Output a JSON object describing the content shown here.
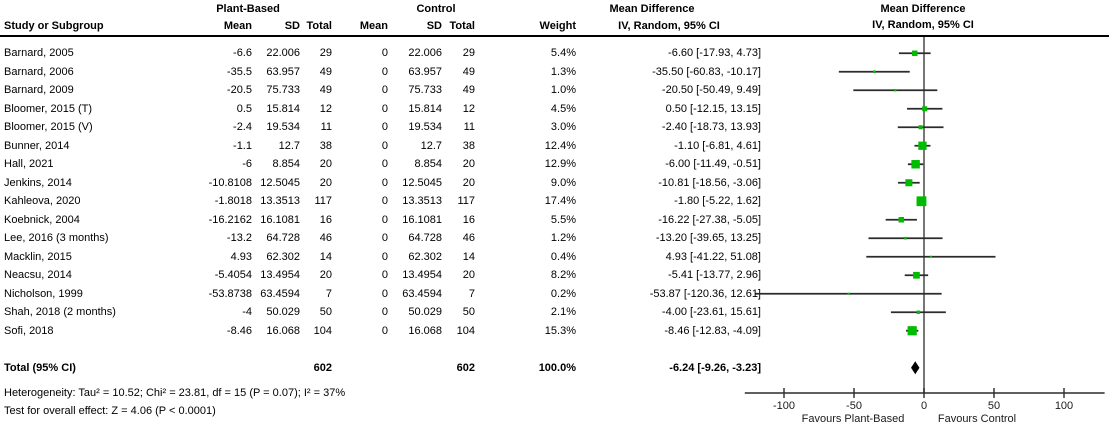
{
  "header": {
    "group_plant": "Plant-Based",
    "group_control": "Control",
    "md_title_left": "Mean Difference",
    "md_sub_left": "IV, Random, 95% CI",
    "md_title_right": "Mean Difference",
    "md_sub_right": "IV, Random, 95% CI",
    "col_study": "Study or Subgroup",
    "col_mean": "Mean",
    "col_sd": "SD",
    "col_total": "Total",
    "col_weight": "Weight"
  },
  "studies": [
    {
      "name": "Barnard, 2005",
      "p_mean": "-6.6",
      "p_sd": "22.006",
      "p_total": "29",
      "c_mean": "0",
      "c_sd": "22.006",
      "c_total": "29",
      "weight": "5.4%",
      "md_text": "-6.60 [-17.93, 4.73]",
      "md": -6.6,
      "lo": -17.93,
      "hi": 4.73,
      "w": 5.4
    },
    {
      "name": "Barnard, 2006",
      "p_mean": "-35.5",
      "p_sd": "63.957",
      "p_total": "49",
      "c_mean": "0",
      "c_sd": "63.957",
      "c_total": "49",
      "weight": "1.3%",
      "md_text": "-35.50 [-60.83, -10.17]",
      "md": -35.5,
      "lo": -60.83,
      "hi": -10.17,
      "w": 1.3
    },
    {
      "name": "Barnard, 2009",
      "p_mean": "-20.5",
      "p_sd": "75.733",
      "p_total": "49",
      "c_mean": "0",
      "c_sd": "75.733",
      "c_total": "49",
      "weight": "1.0%",
      "md_text": "-20.50 [-50.49, 9.49]",
      "md": -20.5,
      "lo": -50.49,
      "hi": 9.49,
      "w": 1.0
    },
    {
      "name": "Bloomer, 2015 (T)",
      "p_mean": "0.5",
      "p_sd": "15.814",
      "p_total": "12",
      "c_mean": "0",
      "c_sd": "15.814",
      "c_total": "12",
      "weight": "4.5%",
      "md_text": "0.50 [-12.15, 13.15]",
      "md": 0.5,
      "lo": -12.15,
      "hi": 13.15,
      "w": 4.5
    },
    {
      "name": "Bloomer, 2015 (V)",
      "p_mean": "-2.4",
      "p_sd": "19.534",
      "p_total": "11",
      "c_mean": "0",
      "c_sd": "19.534",
      "c_total": "11",
      "weight": "3.0%",
      "md_text": "-2.40 [-18.73, 13.93]",
      "md": -2.4,
      "lo": -18.73,
      "hi": 13.93,
      "w": 3.0
    },
    {
      "name": "Bunner, 2014",
      "p_mean": "-1.1",
      "p_sd": "12.7",
      "p_total": "38",
      "c_mean": "0",
      "c_sd": "12.7",
      "c_total": "38",
      "weight": "12.4%",
      "md_text": "-1.10 [-6.81, 4.61]",
      "md": -1.1,
      "lo": -6.81,
      "hi": 4.61,
      "w": 12.4
    },
    {
      "name": "Hall, 2021",
      "p_mean": "-6",
      "p_sd": "8.854",
      "p_total": "20",
      "c_mean": "0",
      "c_sd": "8.854",
      "c_total": "20",
      "weight": "12.9%",
      "md_text": "-6.00 [-11.49, -0.51]",
      "md": -6.0,
      "lo": -11.49,
      "hi": -0.51,
      "w": 12.9
    },
    {
      "name": "Jenkins, 2014",
      "p_mean": "-10.8108",
      "p_sd": "12.5045",
      "p_total": "20",
      "c_mean": "0",
      "c_sd": "12.5045",
      "c_total": "20",
      "weight": "9.0%",
      "md_text": "-10.81 [-18.56, -3.06]",
      "md": -10.81,
      "lo": -18.56,
      "hi": -3.06,
      "w": 9.0
    },
    {
      "name": "Kahleova, 2020",
      "p_mean": "-1.8018",
      "p_sd": "13.3513",
      "p_total": "117",
      "c_mean": "0",
      "c_sd": "13.3513",
      "c_total": "117",
      "weight": "17.4%",
      "md_text": "-1.80 [-5.22, 1.62]",
      "md": -1.8,
      "lo": -5.22,
      "hi": 1.62,
      "w": 17.4
    },
    {
      "name": "Koebnick, 2004",
      "p_mean": "-16.2162",
      "p_sd": "16.1081",
      "p_total": "16",
      "c_mean": "0",
      "c_sd": "16.1081",
      "c_total": "16",
      "weight": "5.5%",
      "md_text": "-16.22 [-27.38, -5.05]",
      "md": -16.22,
      "lo": -27.38,
      "hi": -5.05,
      "w": 5.5
    },
    {
      "name": "Lee, 2016 (3 months)",
      "p_mean": "-13.2",
      "p_sd": "64.728",
      "p_total": "46",
      "c_mean": "0",
      "c_sd": "64.728",
      "c_total": "46",
      "weight": "1.2%",
      "md_text": "-13.20 [-39.65, 13.25]",
      "md": -13.2,
      "lo": -39.65,
      "hi": 13.25,
      "w": 1.2
    },
    {
      "name": "Macklin, 2015",
      "p_mean": "4.93",
      "p_sd": "62.302",
      "p_total": "14",
      "c_mean": "0",
      "c_sd": "62.302",
      "c_total": "14",
      "weight": "0.4%",
      "md_text": "4.93 [-41.22, 51.08]",
      "md": 4.93,
      "lo": -41.22,
      "hi": 51.08,
      "w": 0.4
    },
    {
      "name": "Neacsu, 2014",
      "p_mean": "-5.4054",
      "p_sd": "13.4954",
      "p_total": "20",
      "c_mean": "0",
      "c_sd": "13.4954",
      "c_total": "20",
      "weight": "8.2%",
      "md_text": "-5.41 [-13.77, 2.96]",
      "md": -5.41,
      "lo": -13.77,
      "hi": 2.96,
      "w": 8.2
    },
    {
      "name": "Nicholson, 1999",
      "p_mean": "-53.8738",
      "p_sd": "63.4594",
      "p_total": "7",
      "c_mean": "0",
      "c_sd": "63.4594",
      "c_total": "7",
      "weight": "0.2%",
      "md_text": "-53.87 [-120.36, 12.61]",
      "md": -53.87,
      "lo": -120.36,
      "hi": 12.61,
      "w": 0.2
    },
    {
      "name": "Shah, 2018 (2 months)",
      "p_mean": "-4",
      "p_sd": "50.029",
      "p_total": "50",
      "c_mean": "0",
      "c_sd": "50.029",
      "c_total": "50",
      "weight": "2.1%",
      "md_text": "-4.00 [-23.61, 15.61]",
      "md": -4.0,
      "lo": -23.61,
      "hi": 15.61,
      "w": 2.1
    },
    {
      "name": "Sofi, 2018",
      "p_mean": "-8.46",
      "p_sd": "16.068",
      "p_total": "104",
      "c_mean": "0",
      "c_sd": "16.068",
      "c_total": "104",
      "weight": "15.3%",
      "md_text": "-8.46 [-12.83, -4.09]",
      "md": -8.46,
      "lo": -12.83,
      "hi": -4.09,
      "w": 15.3
    }
  ],
  "total": {
    "label": "Total (95% CI)",
    "p_total": "602",
    "c_total": "602",
    "weight": "100.0%",
    "md_text": "-6.24 [-9.26, -3.23]",
    "md": -6.24,
    "lo": -9.26,
    "hi": -3.23
  },
  "footer": {
    "heterogeneity": "Heterogeneity: Tau² = 10.52; Chi² = 23.81, df = 15 (P = 0.07); I² = 37%",
    "overall_effect": "Test for overall effect: Z = 4.06 (P < 0.0001)"
  },
  "axis": {
    "ticks": [
      "-100",
      "-50",
      "0",
      "50",
      "100"
    ],
    "favours_left": "Favours Plant-Based",
    "favours_right": "Favours Control"
  },
  "colors": {
    "square_green": "#00bc00",
    "ci_line": "#2b2b2b",
    "zero_line": "#555555",
    "diamond": "#000000"
  },
  "chart_data": {
    "type": "scatter",
    "subtype": "forest-plot",
    "title": "Mean Difference",
    "xlabel": "IV, Random, 95% CI",
    "xlim": [
      -128,
      129
    ],
    "x_ticks": [
      -100,
      -50,
      0,
      50,
      100
    ],
    "zero_line_x": 0,
    "legend_left": "Favours Plant-Based",
    "legend_right": "Favours Control",
    "series": [
      {
        "name": "Barnard, 2005",
        "x": -6.6,
        "ci": [
          -17.93,
          4.73
        ],
        "weight_pct": 5.4
      },
      {
        "name": "Barnard, 2006",
        "x": -35.5,
        "ci": [
          -60.83,
          -10.17
        ],
        "weight_pct": 1.3
      },
      {
        "name": "Barnard, 2009",
        "x": -20.5,
        "ci": [
          -50.49,
          9.49
        ],
        "weight_pct": 1.0
      },
      {
        "name": "Bloomer, 2015 (T)",
        "x": 0.5,
        "ci": [
          -12.15,
          13.15
        ],
        "weight_pct": 4.5
      },
      {
        "name": "Bloomer, 2015 (V)",
        "x": -2.4,
        "ci": [
          -18.73,
          13.93
        ],
        "weight_pct": 3.0
      },
      {
        "name": "Bunner, 2014",
        "x": -1.1,
        "ci": [
          -6.81,
          4.61
        ],
        "weight_pct": 12.4
      },
      {
        "name": "Hall, 2021",
        "x": -6.0,
        "ci": [
          -11.49,
          -0.51
        ],
        "weight_pct": 12.9
      },
      {
        "name": "Jenkins, 2014",
        "x": -10.81,
        "ci": [
          -18.56,
          -3.06
        ],
        "weight_pct": 9.0
      },
      {
        "name": "Kahleova, 2020",
        "x": -1.8,
        "ci": [
          -5.22,
          1.62
        ],
        "weight_pct": 17.4
      },
      {
        "name": "Koebnick, 2004",
        "x": -16.22,
        "ci": [
          -27.38,
          -5.05
        ],
        "weight_pct": 5.5
      },
      {
        "name": "Lee, 2016 (3 months)",
        "x": -13.2,
        "ci": [
          -39.65,
          13.25
        ],
        "weight_pct": 1.2
      },
      {
        "name": "Macklin, 2015",
        "x": 4.93,
        "ci": [
          -41.22,
          51.08
        ],
        "weight_pct": 0.4
      },
      {
        "name": "Neacsu, 2014",
        "x": -5.41,
        "ci": [
          -13.77,
          2.96
        ],
        "weight_pct": 8.2
      },
      {
        "name": "Nicholson, 1999",
        "x": -53.87,
        "ci": [
          -120.36,
          12.61
        ],
        "weight_pct": 0.2
      },
      {
        "name": "Shah, 2018 (2 months)",
        "x": -4.0,
        "ci": [
          -23.61,
          15.61
        ],
        "weight_pct": 2.1
      },
      {
        "name": "Sofi, 2018",
        "x": -8.46,
        "ci": [
          -12.83,
          -4.09
        ],
        "weight_pct": 15.3
      }
    ],
    "total_diamond": {
      "x": -6.24,
      "ci": [
        -9.26,
        -3.23
      ],
      "weight_pct": 100.0
    }
  }
}
